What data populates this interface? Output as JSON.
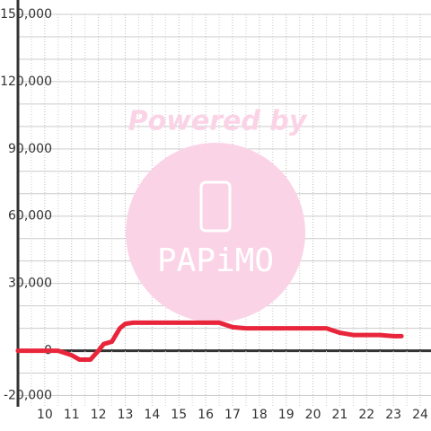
{
  "chart_data": {
    "type": "line",
    "watermark": {
      "text": "Powered by",
      "logo": "PAPiMO"
    },
    "xlim": [
      9,
      24.4
    ],
    "xticks": [
      10,
      11,
      12,
      13,
      14,
      15,
      16,
      17,
      18,
      19,
      20,
      21,
      22,
      23,
      24
    ],
    "minor_xticks": [
      9.5,
      10.5,
      11.5,
      12.5,
      13.5,
      14.5,
      15.5,
      16.5,
      17.5,
      18.5,
      19.5,
      20.5,
      21.5,
      22.5,
      23.5
    ],
    "ylim": [
      -25000,
      150000
    ],
    "yticks": [
      {
        "value": -20000,
        "label": "-20,000"
      },
      0,
      {
        "value": 30000,
        "label": "30,000"
      },
      {
        "value": 60000,
        "label": "60,000"
      },
      {
        "value": 90000,
        "label": "90,000"
      },
      {
        "value": 120000,
        "label": "120,000"
      },
      {
        "value": 150000,
        "label": "150,000"
      }
    ],
    "minor_yticks": [
      -10000,
      10000,
      20000,
      40000,
      50000,
      70000,
      80000,
      100000,
      110000,
      130000,
      140000
    ],
    "grid": true,
    "series": [
      {
        "color": "#e8253a",
        "x": [
          9,
          10,
          10.5,
          11,
          11.3,
          11.7,
          12,
          12.2,
          12.5,
          12.8,
          13,
          13.3,
          15,
          16.5,
          17,
          17.5,
          20.5,
          21,
          21.5,
          22.5,
          23,
          23.3
        ],
        "values": [
          0,
          0,
          0,
          -2000,
          -4000,
          -4000,
          0,
          3000,
          4000,
          10000,
          12000,
          12500,
          12500,
          12500,
          10500,
          10000,
          10000,
          8000,
          7000,
          7000,
          6500,
          6500
        ]
      }
    ]
  }
}
